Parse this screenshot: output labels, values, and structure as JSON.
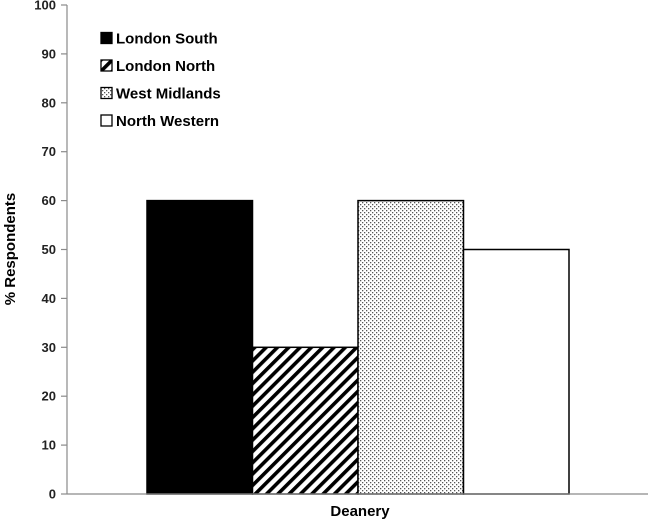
{
  "chart_data": {
    "type": "bar",
    "title": "",
    "xlabel": "Deanery",
    "ylabel": "% Respondents",
    "ylim": [
      0,
      100
    ],
    "yticks": [
      0,
      10,
      20,
      30,
      40,
      50,
      60,
      70,
      80,
      90,
      100
    ],
    "categories": [
      ""
    ],
    "grid": false,
    "legend_position": "top-left",
    "series": [
      {
        "name": "London South",
        "values": [
          60
        ],
        "fill": "solid",
        "color": "#000000"
      },
      {
        "name": "London North",
        "values": [
          30
        ],
        "fill": "diagonal-hatch",
        "color": "#000000"
      },
      {
        "name": "West Midlands",
        "values": [
          60
        ],
        "fill": "dots",
        "color": "#000000"
      },
      {
        "name": "North Western",
        "values": [
          50
        ],
        "fill": "none",
        "color": "#000000"
      }
    ]
  }
}
